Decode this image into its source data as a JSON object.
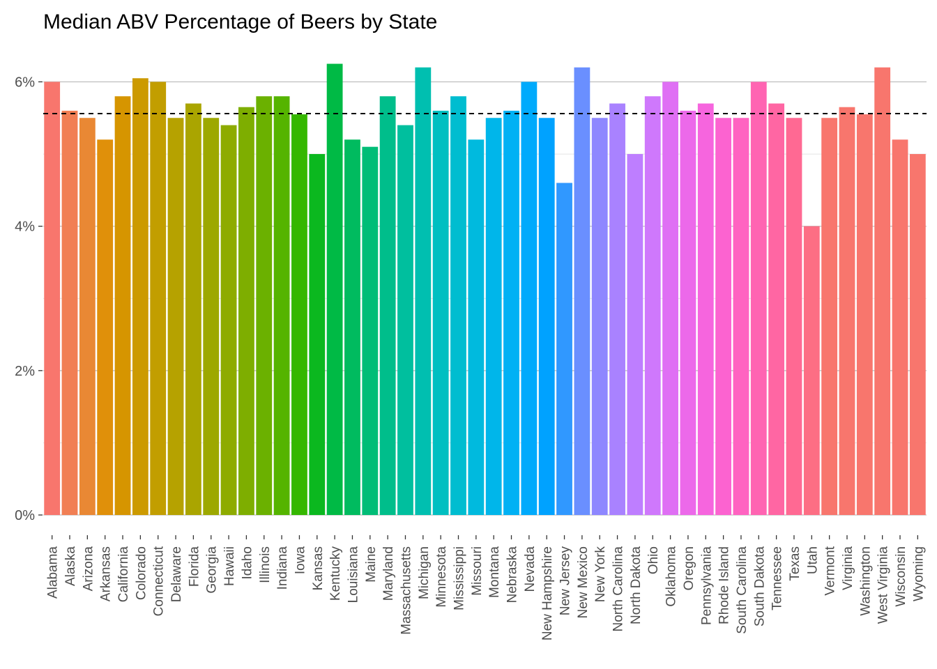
{
  "chart_data": {
    "type": "bar",
    "title": "Median ABV Percentage of Beers by State",
    "xlabel": "",
    "ylabel": "",
    "ylim": [
      0,
      0.064
    ],
    "y_ticks": [
      0,
      0.02,
      0.04,
      0.06
    ],
    "y_tick_labels": [
      "0%",
      "2%",
      "4%",
      "6%"
    ],
    "y_minor_ticks": [
      0.01,
      0.03,
      0.05
    ],
    "reference_line": {
      "value": 0.0556,
      "style": "dashed",
      "color": "#000000"
    },
    "legend": "none",
    "grid": "horizontal",
    "categories": [
      "Alabama",
      "Alaska",
      "Arizona",
      "Arkansas",
      "California",
      "Colorado",
      "Connecticut",
      "Delaware",
      "Florida",
      "Georgia",
      "Hawaii",
      "Idaho",
      "Illinois",
      "Indiana",
      "Iowa",
      "Kansas",
      "Kentucky",
      "Louisiana",
      "Maine",
      "Maryland",
      "Massachusetts",
      "Michigan",
      "Minnesota",
      "Mississippi",
      "Missouri",
      "Montana",
      "Nebraska",
      "Nevada",
      "New Hampshire",
      "New Jersey",
      "New Mexico",
      "New York",
      "North Carolina",
      "North Dakota",
      "Ohio",
      "Oklahoma",
      "Oregon",
      "Pennsylvania",
      "Rhode Island",
      "South Carolina",
      "South Dakota",
      "Tennessee",
      "Texas",
      "Utah",
      "Vermont",
      "Virginia",
      "Washington",
      "West Virginia",
      "Wisconsin",
      "Wyoming"
    ],
    "values": [
      0.06,
      0.056,
      0.055,
      0.052,
      0.058,
      0.0605,
      0.06,
      0.055,
      0.057,
      0.055,
      0.054,
      0.0565,
      0.058,
      0.058,
      0.0555,
      0.05,
      0.0625,
      0.052,
      0.051,
      0.058,
      0.054,
      0.062,
      0.056,
      0.058,
      0.052,
      0.055,
      0.056,
      0.06,
      0.055,
      0.046,
      0.062,
      0.055,
      0.057,
      0.05,
      0.058,
      0.06,
      0.056,
      0.057,
      0.055,
      0.055,
      0.06,
      0.057,
      0.055,
      0.04,
      0.055,
      0.0565,
      0.0555,
      0.062,
      0.052,
      0.05
    ],
    "colors": [
      "#F8766D",
      "#F17F54",
      "#E98834",
      "#E0900A",
      "#D69500",
      "#CC9A00",
      "#C29E00",
      "#B6A200",
      "#AAA500",
      "#9DA800",
      "#8EAB00",
      "#7EAE00",
      "#6BB100",
      "#55B400",
      "#35B700",
      "#0BB81F",
      "#00BA45",
      "#00BB5F",
      "#00BD77",
      "#00BE8B",
      "#00BF9E",
      "#00BFB0",
      "#00BFC1",
      "#00BDD0",
      "#00BADE",
      "#00B6EA",
      "#00B1F4",
      "#00AAFC",
      "#00A2FF",
      "#3098FF",
      "#6A8FFF",
      "#8E87FF",
      "#A982FF",
      "#BE7EFF",
      "#CF78FC",
      "#DF6FF4",
      "#EC69EA",
      "#F665DE",
      "#FC63D0",
      "#FF63C1",
      "#FF64B2",
      "#FF66A3",
      "#FF6993",
      "#FD6E84",
      "#F8766D",
      "#F8766D",
      "#F8766D",
      "#F8766D",
      "#F8766D",
      "#F8766D"
    ]
  }
}
